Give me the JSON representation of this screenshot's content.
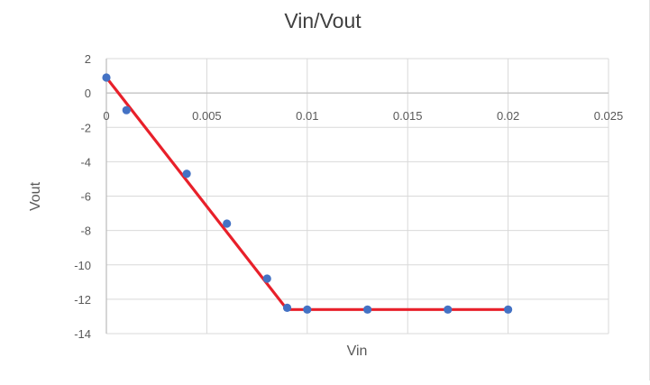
{
  "chart_data": {
    "type": "scatter",
    "title": "Vin/Vout",
    "xlabel": "Vin",
    "ylabel": "Vout",
    "xlim": [
      0,
      0.025
    ],
    "ylim": [
      -14,
      2
    ],
    "x_ticks": [
      "0",
      "0.005",
      "0.01",
      "0.015",
      "0.02",
      "0.025"
    ],
    "x_tick_values": [
      0,
      0.005,
      0.01,
      0.015,
      0.02,
      0.025
    ],
    "y_ticks": [
      "2",
      "0",
      "-2",
      "-4",
      "-6",
      "-8",
      "-10",
      "-12",
      "-14"
    ],
    "y_tick_values": [
      2,
      0,
      -2,
      -4,
      -6,
      -8,
      -10,
      -12,
      -14
    ],
    "grid": true,
    "legend": "none",
    "series": [
      {
        "name": "",
        "marker_color": "#4472C4",
        "x": [
          0,
          0.001,
          0.004,
          0.006,
          0.008,
          0.009,
          0.01,
          0.013,
          0.017,
          0.02
        ],
        "y": [
          0.9,
          -1.0,
          -4.7,
          -7.6,
          -10.8,
          -12.5,
          -12.6,
          -12.6,
          -12.6,
          -12.6
        ]
      }
    ],
    "fit_line": {
      "color": "#E8202A",
      "x": [
        0,
        0.009,
        0.02
      ],
      "y": [
        0.9,
        -12.6,
        -12.6
      ]
    }
  },
  "colors": {
    "grid": "#d9d9d9",
    "axis": "#bfbfbf",
    "text": "#595959",
    "title": "#404040"
  }
}
